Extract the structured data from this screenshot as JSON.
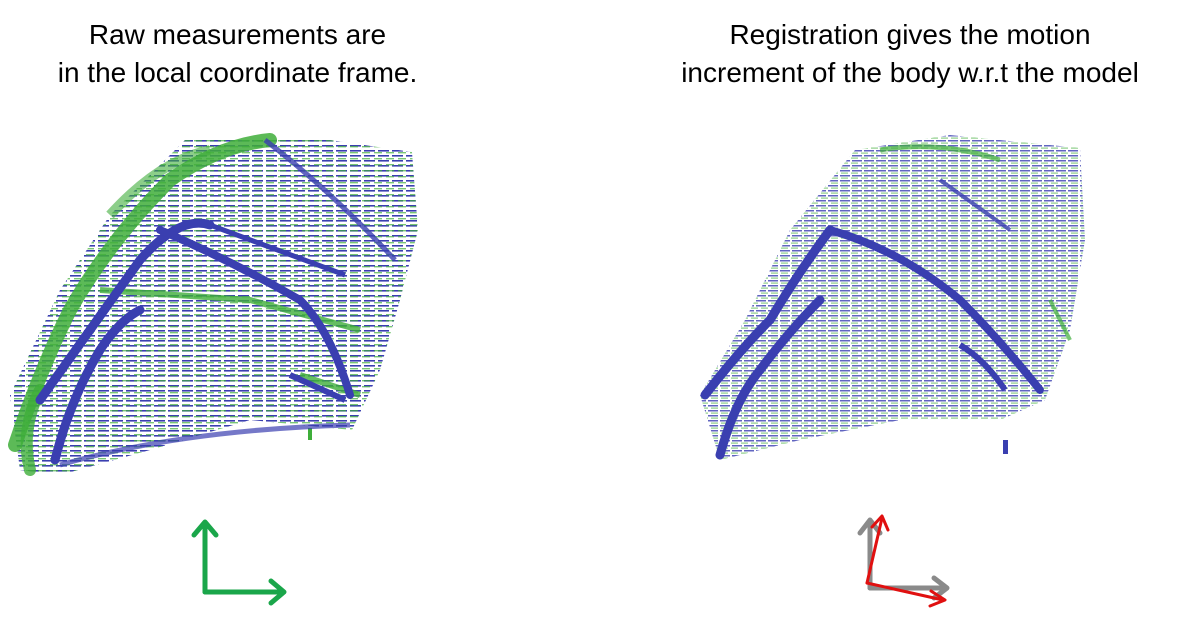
{
  "left_panel": {
    "caption_line1": "Raw measurements are",
    "caption_line2": "in the local coordinate frame."
  },
  "right_panel": {
    "caption_line1": "Registration gives the motion",
    "caption_line2": "increment of the body w.r.t the model"
  },
  "colors": {
    "model_points": "#3a3fb0",
    "scan_points": "#3fae3a",
    "local_frame": "#1aa64a",
    "model_frame": "#8a8a8a",
    "body_frame": "#e01010"
  }
}
